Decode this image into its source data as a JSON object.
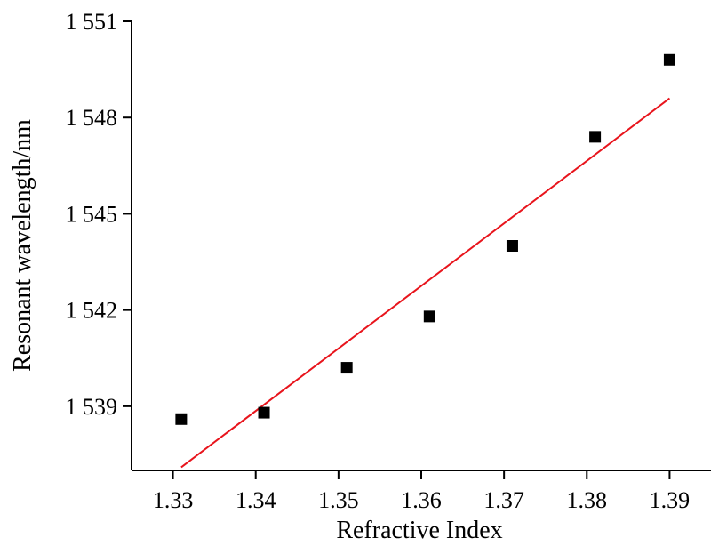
{
  "chart_data": {
    "type": "scatter",
    "title": "",
    "xlabel": "Refractive Index",
    "ylabel": "Resonant wavelength/nm",
    "xlim": [
      1.325,
      1.395
    ],
    "ylim": [
      1537.0,
      1551.0
    ],
    "x_ticks": [
      1.33,
      1.34,
      1.35,
      1.36,
      1.37,
      1.38,
      1.39
    ],
    "x_tick_labels": [
      "1.33",
      "1.34",
      "1.35",
      "1.36",
      "1.37",
      "1.38",
      "1.39"
    ],
    "y_ticks": [
      1539,
      1542,
      1545,
      1548,
      1551
    ],
    "y_tick_labels": [
      "1 539",
      "1 542",
      "1 545",
      "1 548",
      "1 551"
    ],
    "grid": false,
    "series": [
      {
        "marker": "square",
        "color": "#000000",
        "x": [
          1.331,
          1.341,
          1.351,
          1.361,
          1.371,
          1.381,
          1.39
        ],
        "y": [
          1538.6,
          1538.8,
          1540.2,
          1541.8,
          1544.0,
          1547.4,
          1549.8
        ]
      }
    ],
    "fit_line": {
      "color": "#e8141c",
      "x": [
        1.331,
        1.39
      ],
      "y": [
        1537.1,
        1548.6
      ]
    }
  }
}
